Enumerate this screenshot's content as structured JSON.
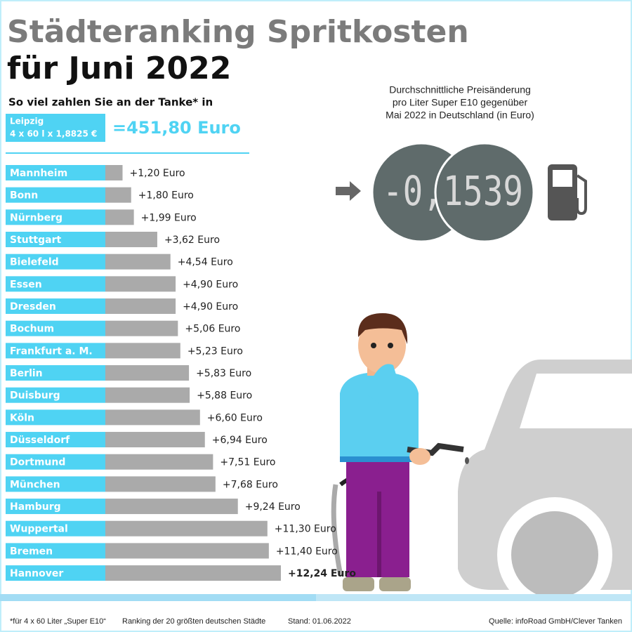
{
  "chart_data": {
    "type": "bar",
    "title": [
      "Städteranking Spritkosten",
      "für Juni 2022"
    ],
    "subtitle": "So viel zahlen Sie an der Tanke* in",
    "reference": {
      "city": "Leipzig",
      "formula": "4 x 60 l x 1,8825 €",
      "total": "=451,80 Euro"
    },
    "categories": [
      "Mannheim",
      "Bonn",
      "Nürnberg",
      "Stuttgart",
      "Bielefeld",
      "Essen",
      "Dresden",
      "Bochum",
      "Frankfurt a. M.",
      "Berlin",
      "Duisburg",
      "Köln",
      "Düsseldorf",
      "Dortmund",
      "München",
      "Hamburg",
      "Wuppertal",
      "Bremen",
      "Hannover"
    ],
    "values": [
      1.2,
      1.8,
      1.99,
      3.62,
      4.54,
      4.9,
      4.9,
      5.06,
      5.23,
      5.83,
      5.88,
      6.6,
      6.94,
      7.51,
      7.68,
      9.24,
      11.3,
      11.4,
      12.24
    ],
    "value_labels": [
      "+1,20 Euro",
      "+1,80 Euro",
      "+1,99 Euro",
      "+3,62 Euro",
      "+4,54 Euro",
      "+4,90 Euro",
      "+4,90 Euro",
      "+5,06 Euro",
      "+5,23 Euro",
      "+5,83 Euro",
      "+5,88 Euro",
      "+6,60 Euro",
      "+6,94 Euro",
      "+7,51 Euro",
      "+7,68 Euro",
      "+9,24 Euro",
      "+11,30 Euro",
      "+11,40 Euro",
      "+12,24 Euro"
    ],
    "color": "#aaaaaa",
    "label_color": "#4fd3f3",
    "price_change": {
      "caption": [
        "Durchschnittliche Preisänderung",
        "pro Liter Super E10 gegenüber",
        "Mai 2022 in Deutschland (in Euro)"
      ],
      "display": "-0,1539"
    },
    "footnotes": [
      "*für 4 x 60 Liter „Super E10“",
      "Ranking der 20 größten deutschen Städte",
      "Stand: 01.06.2022",
      "Quelle: infoRoad GmbH/Clever Tanken"
    ]
  }
}
